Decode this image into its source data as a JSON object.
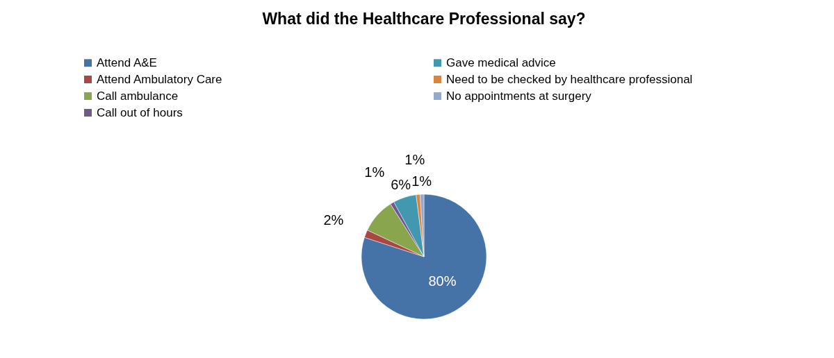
{
  "chart_data": {
    "type": "pie",
    "title": "What did the Healthcare Professional say?",
    "categories": [
      "Attend A&E",
      "Attend Ambulatory Care",
      "Call ambulance",
      "Call out of hours",
      "Gave medical advice",
      "Need to be checked by healthcare professional",
      "No appointments at surgery"
    ],
    "values": [
      80,
      2,
      9,
      1,
      6,
      1,
      1
    ],
    "colors": [
      "#4572a7",
      "#aa4643",
      "#89a54e",
      "#71588f",
      "#4198af",
      "#db843d",
      "#93a9cf"
    ],
    "value_labels": [
      "80%",
      "2%",
      null,
      "1%",
      "6%",
      "1%",
      "1%"
    ],
    "legend": "top"
  }
}
